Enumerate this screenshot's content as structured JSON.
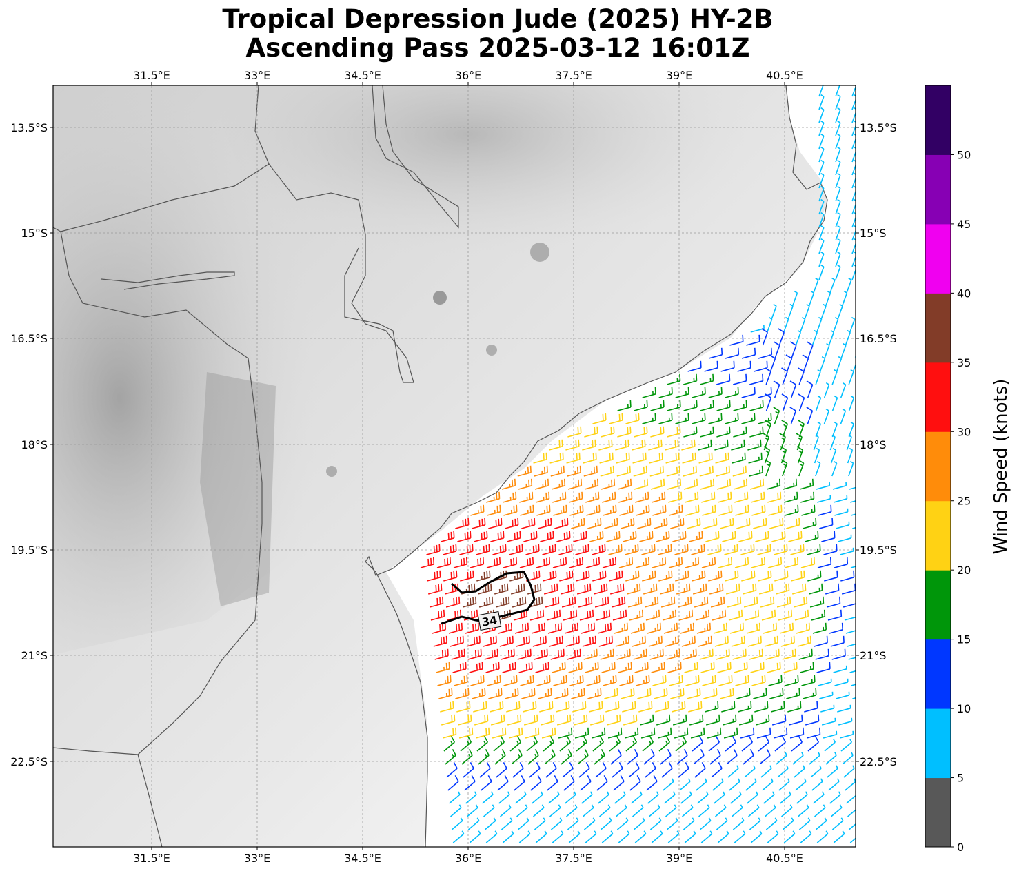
{
  "title_line1": "Tropical Depression Jude (2025) HY-2B",
  "title_line2": "Ascending Pass 2025-03-12 16:01Z",
  "lon_ticks": [
    "31.5°E",
    "33°E",
    "34.5°E",
    "36°E",
    "37.5°E",
    "39°E",
    "40.5°E"
  ],
  "lat_ticks": [
    "13.5°S",
    "15°S",
    "16.5°S",
    "18°S",
    "19.5°S",
    "21°S",
    "22.5°S"
  ],
  "colorbar": {
    "label": "Wind Speed (knots)",
    "ticks": [
      "0",
      "5",
      "10",
      "15",
      "20",
      "25",
      "30",
      "35",
      "40",
      "45",
      "50"
    ],
    "colors": [
      "#585858",
      "#00bfff",
      "#0037ff",
      "#00960a",
      "#ffd214",
      "#ff8c0a",
      "#ff0f0f",
      "#823c28",
      "#f000f0",
      "#8700b4",
      "#320064"
    ]
  },
  "contour_label": "34",
  "map": {
    "lon_range": [
      30.1,
      41.5
    ],
    "lat_range": [
      -24.1,
      -13.1
    ],
    "gridlines": true,
    "background": "grayscale terrain"
  }
}
